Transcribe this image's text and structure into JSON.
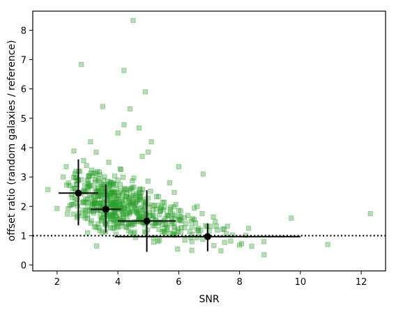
{
  "chart_data": {
    "type": "scatter",
    "xlabel": "SNR",
    "ylabel": "offset ratio (random galaxies / reference)",
    "xlim": [
      1.2,
      12.8
    ],
    "ylim": [
      -0.2,
      8.65
    ],
    "xticks": [
      2,
      4,
      6,
      8,
      10,
      12
    ],
    "yticks": [
      0,
      1,
      2,
      3,
      4,
      5,
      6,
      7,
      8
    ],
    "reference_line": {
      "y": 1.0,
      "style": "dotted",
      "color": "#000000"
    },
    "scatter": {
      "color": "#2ca02c",
      "marker": "square",
      "outliers": [
        [
          1.7,
          2.57
        ],
        [
          2.0,
          1.93
        ],
        [
          2.2,
          3.0
        ],
        [
          2.8,
          6.83
        ],
        [
          4.5,
          8.33
        ],
        [
          4.2,
          6.63
        ],
        [
          4.9,
          5.9
        ],
        [
          3.5,
          5.4
        ],
        [
          4.4,
          5.32
        ],
        [
          4.2,
          4.78
        ],
        [
          4.7,
          4.67
        ],
        [
          5.1,
          4.2
        ],
        [
          4.0,
          4.5
        ],
        [
          5.0,
          3.85
        ],
        [
          6.0,
          3.35
        ],
        [
          6.8,
          3.1
        ],
        [
          7.2,
          1.48
        ],
        [
          7.6,
          1.32
        ],
        [
          8.3,
          1.25
        ],
        [
          9.7,
          1.6
        ],
        [
          10.9,
          0.7
        ],
        [
          12.3,
          1.75
        ],
        [
          8.8,
          0.8
        ],
        [
          8.0,
          0.68
        ],
        [
          6.6,
          2.0
        ],
        [
          3.0,
          1.1
        ],
        [
          3.3,
          0.65
        ],
        [
          2.5,
          2.3
        ],
        [
          2.6,
          2.1
        ],
        [
          3.1,
          4.2
        ],
        [
          3.7,
          3.5
        ],
        [
          2.3,
          3.35
        ],
        [
          4.8,
          3.7
        ],
        [
          5.7,
          2.8
        ],
        [
          6.2,
          0.85
        ]
      ],
      "cloud_count": 560
    },
    "binned_points": [
      {
        "x": 2.7,
        "y": 2.45,
        "xerr": 0.65,
        "yerr_low": 1.1,
        "yerr_high": 1.15
      },
      {
        "x": 3.6,
        "y": 1.9,
        "xerr": 0.5,
        "yerr_low": 0.8,
        "yerr_high": 0.85
      },
      {
        "x": 4.95,
        "y": 1.5,
        "xerr": 0.95,
        "yerr_low": 1.05,
        "yerr_high": 1.05
      },
      {
        "x": 6.95,
        "y": 0.97,
        "xerr": 3.05,
        "yerr_low": 0.5,
        "yerr_high": 0.45
      }
    ]
  }
}
